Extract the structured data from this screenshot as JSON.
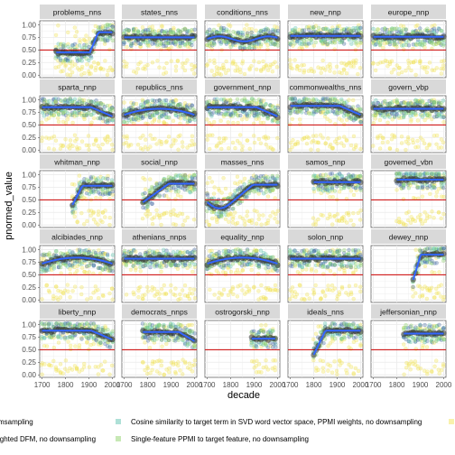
{
  "chart_data": {
    "type": "scatter",
    "facet_titles": [
      "problems_nns",
      "states_nns",
      "conditions_nns",
      "new_nnp",
      "europe_nnp",
      "sparta_nnp",
      "republics_nns",
      "government_nnp",
      "commonwealths_nns",
      "govern_vbp",
      "whitman_nnp",
      "social_nnp",
      "masses_nns",
      "samos_nnp",
      "governed_vbn",
      "alcibiades_nnp",
      "athenians_nnps",
      "equality_nnp",
      "solon_nnp",
      "dewey_nnp",
      "liberty_nnp",
      "democrats_nnps",
      "ostrogorski_nnp",
      "ideals_nns",
      "jeffersonian_nnp"
    ],
    "xlabel": "decade",
    "ylabel": "pnormed_value",
    "x_ticks": [
      "1700",
      "1800",
      "1900",
      "2000"
    ],
    "y_ticks": [
      "0.00",
      "0.25",
      "0.50",
      "0.75",
      "1.00"
    ],
    "xlim": [
      1690,
      2010
    ],
    "ylim": [
      -0.05,
      1.08
    ],
    "reference_line_y": 0.5,
    "legend_entries": [
      "msampling",
      "Cosine similarity to target term in SVD word vector space, PPMI weights, no downsampling",
      "ighted DFM, no downsampling",
      "Single-feature PPMI to target feature, no downsampling"
    ],
    "colors": {
      "panel_background": "#ffffff",
      "grid": "#ebebeb",
      "strip": "#d9d9d9",
      "reference_line": "#cc0000",
      "smooth": "#3366ff",
      "mean_points": "#333333",
      "series_teal": "#5ec2b0",
      "series_blue": "#4a6fa5",
      "series_green": "#8fd16c",
      "series_yellow": "#f1e35a"
    },
    "facets": [
      {
        "start": 1760,
        "end": 2000,
        "level": 0.65,
        "shape": "rise_1870"
      },
      {
        "start": 1700,
        "end": 2000,
        "level": 0.75,
        "shape": "flat"
      },
      {
        "start": 1700,
        "end": 2000,
        "level": 0.72,
        "shape": "wave"
      },
      {
        "start": 1700,
        "end": 2000,
        "level": 0.78,
        "shape": "flat"
      },
      {
        "start": 1700,
        "end": 2000,
        "level": 0.76,
        "shape": "flat"
      },
      {
        "start": 1700,
        "end": 2000,
        "level": 0.85,
        "shape": "fall_late"
      },
      {
        "start": 1700,
        "end": 2000,
        "level": 0.78,
        "shape": "hump"
      },
      {
        "start": 1700,
        "end": 2000,
        "level": 0.85,
        "shape": "fall_late"
      },
      {
        "start": 1700,
        "end": 2000,
        "level": 0.88,
        "shape": "fall_late"
      },
      {
        "start": 1700,
        "end": 2000,
        "level": 0.82,
        "shape": "flat"
      },
      {
        "start": 1830,
        "end": 2000,
        "level": 0.78,
        "shape": "rise_early"
      },
      {
        "start": 1780,
        "end": 2000,
        "level": 0.82,
        "shape": "rise_1850"
      },
      {
        "start": 1700,
        "end": 2000,
        "level": 0.8,
        "shape": "dip_1800"
      },
      {
        "start": 1800,
        "end": 2000,
        "level": 0.85,
        "shape": "flat"
      },
      {
        "start": 1800,
        "end": 2000,
        "level": 0.9,
        "shape": "flat"
      },
      {
        "start": 1700,
        "end": 2000,
        "level": 0.8,
        "shape": "hump"
      },
      {
        "start": 1700,
        "end": 2000,
        "level": 0.82,
        "shape": "flat"
      },
      {
        "start": 1700,
        "end": 2000,
        "level": 0.8,
        "shape": "hump"
      },
      {
        "start": 1700,
        "end": 2000,
        "level": 0.82,
        "shape": "flat"
      },
      {
        "start": 1870,
        "end": 2000,
        "level": 0.9,
        "shape": "rise_early"
      },
      {
        "start": 1700,
        "end": 2000,
        "level": 0.88,
        "shape": "fall_late"
      },
      {
        "start": 1780,
        "end": 2000,
        "level": 0.85,
        "shape": "fall_late"
      },
      {
        "start": 1890,
        "end": 1990,
        "level": 0.72,
        "shape": "flat"
      },
      {
        "start": 1800,
        "end": 2000,
        "level": 0.88,
        "shape": "rise_early"
      },
      {
        "start": 1830,
        "end": 2000,
        "level": 0.82,
        "shape": "flat"
      }
    ]
  }
}
